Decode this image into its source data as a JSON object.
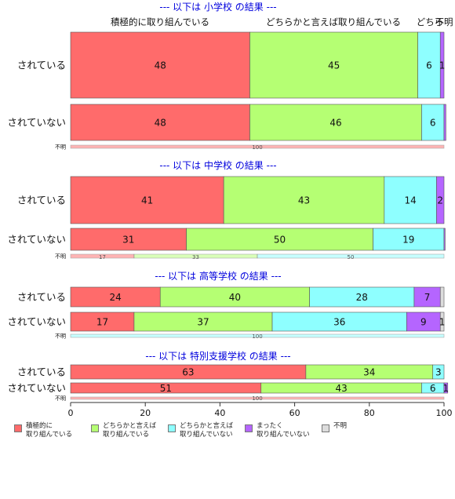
{
  "chart_data": {
    "type": "bar",
    "orientation": "horizontal",
    "stacked": true,
    "xlim": [
      0,
      100
    ],
    "x_ticks": [
      "0",
      "20",
      "40",
      "60",
      "80",
      "100"
    ],
    "colors": {
      "positive": "#ff6b6b",
      "somewhat_positive": "#b5ff73",
      "somewhat_negative": "#8effff",
      "negative": "#b565ff",
      "unknown": "#dcdcdc",
      "section_title": "#0000dd"
    },
    "series_names": [
      "積極的に\n取り組んでいる",
      "どちらかと言えば\n取り組んでいる",
      "どちらかと言えば\n取り組んでいない",
      "まったく\n取り組んでいない",
      "不明"
    ],
    "top_headers": [
      "積極的に取り組んでいる",
      "どちらかと言えば取り組んでいる",
      "どちら",
      "不明"
    ],
    "panels": [
      {
        "title": "--- 以下は 小学校 の結果 ---",
        "rows": [
          {
            "label": "されている",
            "values": [
              48,
              45,
              6,
              1,
              0
            ],
            "labels": [
              "48",
              "45",
              "6",
              "1",
              ""
            ]
          },
          {
            "label": "されていない",
            "values": [
              48,
              46,
              6,
              0.5,
              0
            ],
            "labels": [
              "48",
              "46",
              "6",
              "",
              ""
            ]
          },
          {
            "label": "不明",
            "values": [
              100,
              0,
              0,
              0,
              0
            ],
            "labels": [
              "100",
              "",
              "",
              "",
              ""
            ]
          }
        ]
      },
      {
        "title": "--- 以下は 中学校 の結果 ---",
        "rows": [
          {
            "label": "されている",
            "values": [
              41,
              43,
              14,
              2,
              0
            ],
            "labels": [
              "41",
              "43",
              "14",
              "2",
              ""
            ]
          },
          {
            "label": "されていない",
            "values": [
              31,
              50,
              19,
              0.3,
              0
            ],
            "labels": [
              "31",
              "50",
              "19",
              "",
              ""
            ]
          },
          {
            "label": "不明",
            "values": [
              17,
              33,
              50,
              0,
              0
            ],
            "labels": [
              "17",
              "33",
              "50",
              "",
              ""
            ]
          }
        ]
      },
      {
        "title": "--- 以下は 高等学校 の結果 ---",
        "rows": [
          {
            "label": "されている",
            "values": [
              24,
              40,
              28,
              7,
              1
            ],
            "labels": [
              "24",
              "40",
              "28",
              "7",
              ""
            ]
          },
          {
            "label": "されていない",
            "values": [
              17,
              37,
              36,
              9,
              1
            ],
            "labels": [
              "17",
              "37",
              "36",
              "9",
              "1"
            ]
          },
          {
            "label": "不明",
            "values": [
              0,
              0,
              100,
              0,
              0
            ],
            "labels": [
              "",
              "",
              "100",
              "",
              ""
            ]
          }
        ]
      },
      {
        "title": "--- 以下は 特別支援学校 の結果 ---",
        "rows": [
          {
            "label": "されている",
            "values": [
              63,
              34,
              3,
              0,
              0
            ],
            "labels": [
              "63",
              "34",
              "3",
              "",
              ""
            ]
          },
          {
            "label": "されていない",
            "values": [
              51,
              43,
              6,
              1,
              0
            ],
            "labels": [
              "51",
              "43",
              "6",
              "1",
              ""
            ]
          },
          {
            "label": "不明",
            "values": [
              100,
              0,
              0,
              0,
              0
            ],
            "labels": [
              "100",
              "",
              "",
              "",
              ""
            ]
          }
        ]
      }
    ]
  }
}
